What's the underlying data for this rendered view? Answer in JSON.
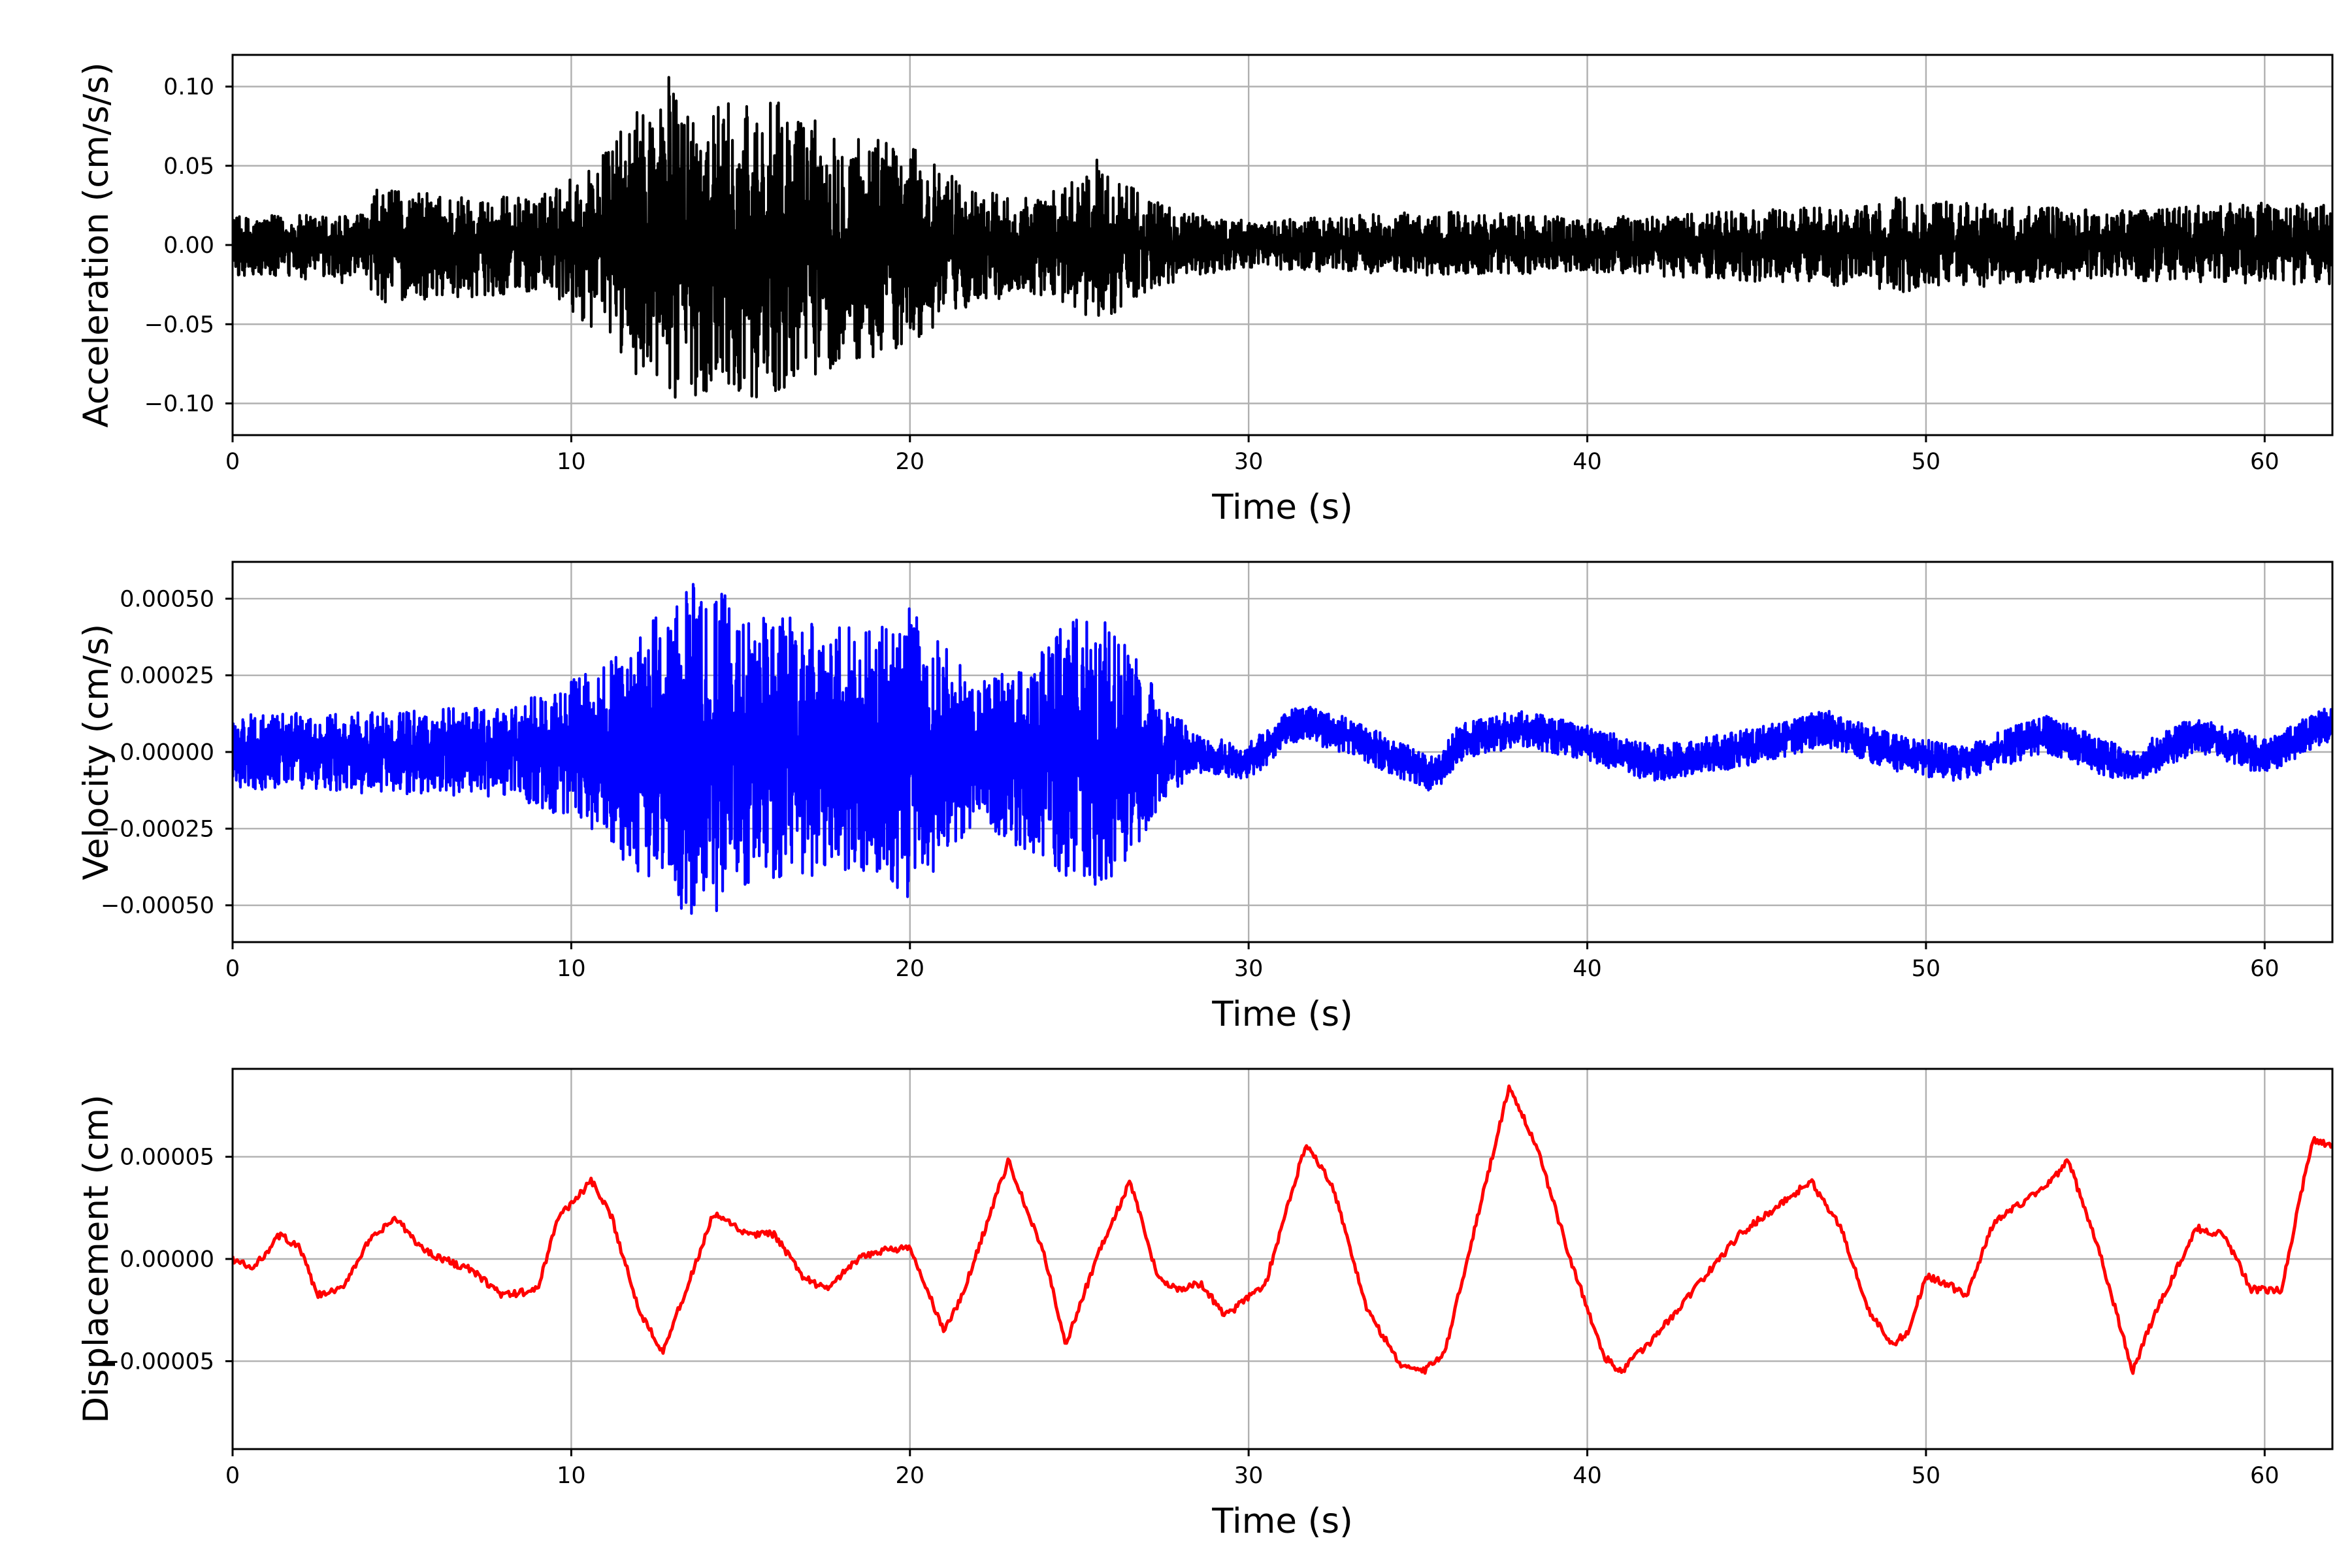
{
  "chart_data": [
    {
      "type": "line",
      "title": "",
      "xlabel": "Time (s)",
      "ylabel": "Acceleration (cm/s/s)",
      "xlim": [
        0,
        62
      ],
      "ylim": [
        -0.12,
        0.12
      ],
      "grid": true,
      "color": "#000000",
      "x_ticks": [
        0,
        10,
        20,
        30,
        40,
        50,
        60
      ],
      "x_tick_labels": [
        "0",
        "10",
        "20",
        "30",
        "40",
        "50",
        "60"
      ],
      "y_ticks": [
        0.1,
        0.05,
        0.0,
        -0.05,
        -0.1
      ],
      "y_tick_labels": [
        "0.10",
        "0.05",
        "0.00",
        "−0.05",
        "−0.10"
      ],
      "series": [
        {
          "envelope": {
            "t": [
              0,
              4,
              4.2,
              9,
              10.8,
              12.9,
              13.1,
              14.5,
              15.8,
              17.5,
              19.8,
              22,
              24,
              25.5,
              27.5,
              30,
              36,
              40,
              48.9,
              49,
              55,
              60.5,
              62
            ],
            "upper": [
              0.018,
              0.02,
              0.035,
              0.03,
              0.055,
              0.11,
              0.095,
              0.09,
              0.092,
              0.08,
              0.065,
              0.035,
              0.03,
              0.055,
              0.025,
              0.015,
              0.022,
              0.017,
              0.026,
              0.03,
              0.022,
              0.028,
              0.025
            ],
            "lower": [
              -0.02,
              -0.025,
              -0.037,
              -0.03,
              -0.055,
              -0.105,
              -0.1,
              -0.088,
              -0.1,
              -0.08,
              -0.068,
              -0.035,
              -0.032,
              -0.05,
              -0.025,
              -0.015,
              -0.02,
              -0.017,
              -0.028,
              -0.03,
              -0.022,
              -0.025,
              -0.025
            ]
          }
        }
      ]
    },
    {
      "type": "line",
      "title": "",
      "xlabel": "Time (s)",
      "ylabel": "Velocity (cm/s)",
      "xlim": [
        0,
        62
      ],
      "ylim": [
        -0.00062,
        0.00062
      ],
      "grid": true,
      "color": "#0000ff",
      "x_ticks": [
        0,
        10,
        20,
        30,
        40,
        50,
        60
      ],
      "x_tick_labels": [
        "0",
        "10",
        "20",
        "30",
        "40",
        "50",
        "60"
      ],
      "y_ticks": [
        0.0005,
        0.00025,
        0.0,
        -0.00025,
        -0.0005
      ],
      "y_tick_labels": [
        "0.00050",
        "0.00025",
        "0.00000",
        "−0.00025",
        "−0.00050"
      ],
      "series": [
        {
          "baseline": {
            "t": [
              0,
              8,
              10,
              20,
              28,
              30,
              31.5,
              33,
              35.5,
              36.2,
              38,
              40,
              42,
              45,
              47,
              49,
              51,
              53.5,
              56,
              58,
              60,
              62
            ],
            "v": [
              0,
              0,
              0,
              0,
              0,
              -3e-05,
              0.0001,
              5e-05,
              -8e-05,
              3e-05,
              8e-05,
              3e-05,
              -4e-05,
              2e-05,
              8e-05,
              0.0,
              -4e-05,
              6e-05,
              -5e-05,
              6e-05,
              -2e-05,
              0.0001
            ]
          },
          "envelope": {
            "t": [
              0,
              8,
              9.5,
              11,
              12.8,
              13.6,
              15.5,
              17,
              19,
              20,
              22,
              25.2,
              26.5,
              27.5,
              28.5,
              62
            ],
            "amp": [
              0.00012,
              0.00015,
              0.0002,
              0.0003,
              0.00048,
              0.00055,
              0.00048,
              0.00042,
              0.0004,
              0.00048,
              0.00022,
              0.00048,
              0.00035,
              0.00015,
              6e-05,
              6e-05
            ]
          }
        }
      ]
    },
    {
      "type": "line",
      "title": "",
      "xlabel": "Time (s)",
      "ylabel": "Displacement (cm)",
      "xlim": [
        0,
        62
      ],
      "ylim": [
        -9.3e-05,
        9.3e-05
      ],
      "grid": true,
      "color": "#ff0000",
      "x_ticks": [
        0,
        10,
        20,
        30,
        40,
        50,
        60
      ],
      "x_tick_labels": [
        "0",
        "10",
        "20",
        "30",
        "40",
        "50",
        "60"
      ],
      "y_ticks": [
        5e-05,
        0.0,
        -5e-05
      ],
      "y_tick_labels": [
        "0.00005",
        "0.00000",
        "−0.00005"
      ],
      "series": [
        {
          "x": [
            0,
            0.6,
            1.4,
            2.0,
            2.5,
            3.2,
            4.0,
            4.8,
            5.6,
            6.2,
            7.0,
            8.0,
            9.0,
            9.6,
            10.6,
            11.2,
            12.0,
            12.7,
            13.4,
            14.2,
            15.2,
            16.0,
            16.8,
            17.5,
            18.5,
            19.3,
            20.0,
            21.0,
            21.5,
            22.9,
            24.0,
            24.6,
            25.5,
            26.5,
            27.3,
            27.9,
            28.6,
            29.3,
            30.5,
            31.7,
            32.5,
            33.5,
            34.5,
            35.2,
            35.8,
            37.7,
            38.5,
            39.5,
            40.5,
            41.0,
            42.0,
            43.0,
            44.5,
            45.3,
            46.6,
            47.5,
            48.3,
            49.0,
            49.5,
            50.0,
            50.6,
            51.2,
            52.0,
            53.5,
            54.2,
            55.1,
            56.1,
            56.8,
            58.0,
            58.8,
            59.6,
            60.5,
            61.4,
            62.0
          ],
          "y": [
            0.0,
            -5e-06,
            1.2e-05,
            5e-06,
            -1.8e-05,
            -1.5e-05,
            8e-06,
            2e-05,
            5e-06,
            0.0,
            -5e-06,
            -1.8e-05,
            -1.5e-05,
            2e-05,
            3.8e-05,
            2e-05,
            -2.5e-05,
            -4.5e-05,
            -1.5e-05,
            2.2e-05,
            1.2e-05,
            1.2e-05,
            -8e-06,
            -1.5e-05,
            0.0,
            5e-06,
            5e-06,
            -3.5e-05,
            -2e-05,
            4.8e-05,
            0.0,
            -4.2e-05,
            0.0,
            3.8e-05,
            -8e-06,
            -1.5e-05,
            -1.2e-05,
            -2.8e-05,
            -1.2e-05,
            5.7e-05,
            3.5e-05,
            -2.5e-05,
            -5.2e-05,
            -5.5e-05,
            -4.5e-05,
            8.5e-05,
            5.5e-05,
            0.0,
            -4.8e-05,
            -5.5e-05,
            -3.8e-05,
            -1.8e-05,
            1.2e-05,
            2.2e-05,
            3.8e-05,
            1.5e-05,
            -2.5e-05,
            -4.2e-05,
            -3.5e-05,
            -8e-06,
            -1.2e-05,
            -1.8e-05,
            1.8e-05,
            3.5e-05,
            4.8e-05,
            5e-06,
            -5.5e-05,
            -2.5e-05,
            1.5e-05,
            1.2e-05,
            -1.5e-05,
            -1.5e-05,
            5.8e-05,
            5.6e-05
          ]
        }
      ]
    }
  ]
}
